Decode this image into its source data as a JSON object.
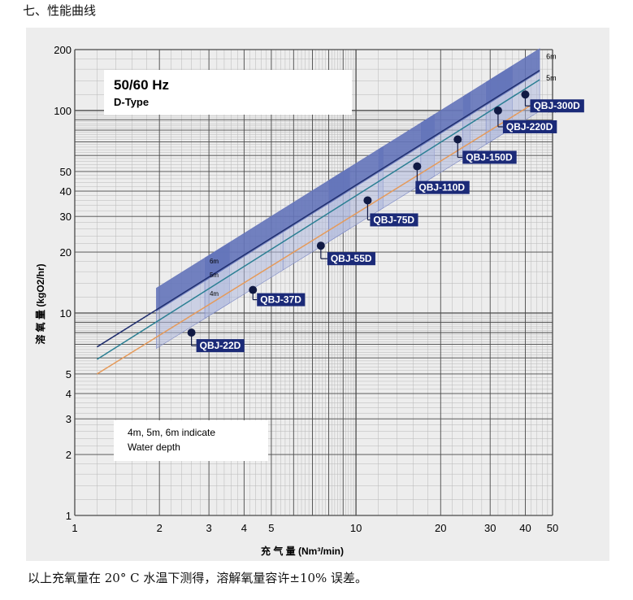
{
  "page": {
    "section_heading": "七、性能曲线",
    "footnote": "以上充氧量在 20° C 水温下测得，溶解氧量容许±10% 误差。"
  },
  "chart_data": {
    "type": "line",
    "x_scale": "log",
    "y_scale": "log",
    "xlim": [
      1,
      50
    ],
    "ylim": [
      1,
      200
    ],
    "grid": true,
    "title": "50/60 Hz",
    "subtitle": "D-Type",
    "xlabel": "充 气 量 (Nm³/min)",
    "ylabel": "溶 氧 量 (kgO2/hr)",
    "x_ticks": [
      1,
      2,
      3,
      4,
      5,
      10,
      20,
      30,
      40,
      50
    ],
    "y_ticks": [
      1,
      2,
      3,
      4,
      5,
      10,
      20,
      30,
      40,
      50,
      100,
      200
    ],
    "note_lines": [
      "4m, 5m, 6m indicate",
      "Water depth"
    ],
    "series": [
      {
        "name": "6m",
        "color": "#1f2e6e",
        "x": [
          1.2,
          45
        ],
        "y": [
          6.8,
          158
        ]
      },
      {
        "name": "5m",
        "color": "#2a7f93",
        "x": [
          1.2,
          45
        ],
        "y": [
          5.9,
          142
        ]
      },
      {
        "name": "4m",
        "color": "#e59a5a",
        "x": [
          1.2,
          45
        ],
        "y": [
          5.0,
          113
        ]
      }
    ],
    "models": [
      {
        "name": "QBJ-22D",
        "x": 2.6,
        "y": 8.0,
        "range_x": [
          1.95,
          3.55
        ],
        "range_y": [
          6.2,
          11.8
        ]
      },
      {
        "name": "QBJ-37D",
        "x": 4.3,
        "y": 13.0,
        "range_x": [
          2.9,
          5.5
        ],
        "range_y": [
          9.5,
          17.5
        ]
      },
      {
        "name": "QBJ-55D",
        "x": 7.5,
        "y": 21.5,
        "range_x": [
          5.5,
          9.5
        ],
        "range_y": [
          15.5,
          32
        ]
      },
      {
        "name": "QBJ-75D",
        "x": 11.0,
        "y": 36.0,
        "range_x": [
          8.0,
          12.5
        ],
        "range_y": [
          24,
          52
        ]
      },
      {
        "name": "QBJ-110D",
        "x": 16.5,
        "y": 53.0,
        "range_x": [
          12.0,
          19.0
        ],
        "range_y": [
          38,
          76
        ]
      },
      {
        "name": "QBJ-150D",
        "x": 23.0,
        "y": 72.0,
        "range_x": [
          17.0,
          25.5
        ],
        "range_y": [
          50,
          110
        ]
      },
      {
        "name": "QBJ-220D",
        "x": 32.0,
        "y": 100.0,
        "range_x": [
          24.0,
          36.0
        ],
        "range_y": [
          70,
          135
        ]
      },
      {
        "name": "QBJ-300D",
        "x": 40.0,
        "y": 120.0,
        "range_x": [
          29.0,
          45.0
        ],
        "range_y": [
          85,
          165
        ]
      }
    ]
  },
  "colors": {
    "panel_bg": "#ededed",
    "grid_major": "#4a4a4a",
    "grid_minor": "#b8b8b8",
    "band_fill": "#5a6cb5",
    "band_light": "#aeb8dc",
    "label_bg": "#1b2a78",
    "label_text": "#ffffff",
    "point": "#111a44"
  }
}
